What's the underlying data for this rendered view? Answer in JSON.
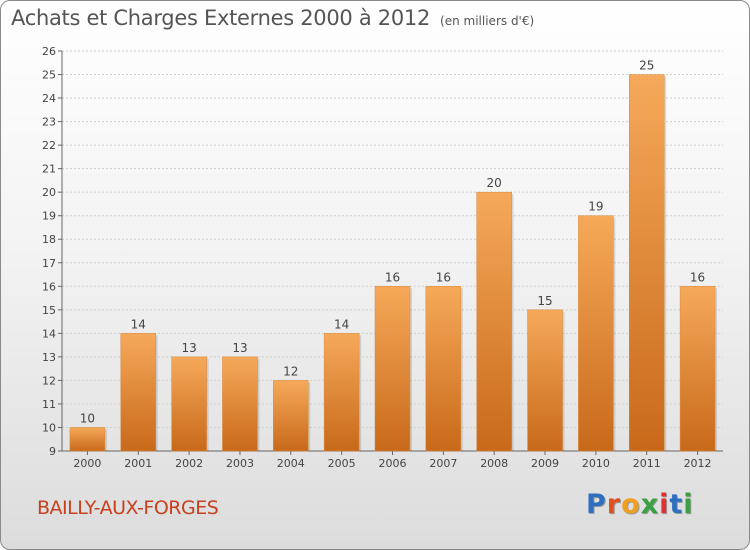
{
  "header": {
    "title": "Achats et Charges Externes 2000 à 2012",
    "unit": "(en milliers d'€)"
  },
  "footer": {
    "commune": "BAILLY-AUX-FORGES",
    "logo": "Proxiti"
  },
  "colors": {
    "bar_light": "#f6a95a",
    "bar_dark": "#c8691a",
    "commune_text": "#c8401e",
    "logo_letters": [
      "#2f6fc0",
      "#e2501e",
      "#f0a020",
      "#3aa040",
      "#e03030",
      "#2f6fc0",
      "#3aa040"
    ]
  },
  "chart_data": {
    "type": "bar",
    "title": "Achats et Charges Externes 2000 à 2012",
    "subtitle": "(en milliers d'€)",
    "categories": [
      "2000",
      "2001",
      "2002",
      "2003",
      "2004",
      "2005",
      "2006",
      "2007",
      "2008",
      "2009",
      "2010",
      "2011",
      "2012"
    ],
    "values": [
      10,
      14,
      13,
      13,
      12,
      14,
      16,
      16,
      20,
      15,
      19,
      25,
      16
    ],
    "ylim": [
      9,
      26
    ],
    "yticks": [
      9,
      10,
      11,
      12,
      13,
      14,
      15,
      16,
      17,
      18,
      19,
      20,
      21,
      22,
      23,
      24,
      25,
      26
    ],
    "grid": true,
    "legend": "none"
  }
}
